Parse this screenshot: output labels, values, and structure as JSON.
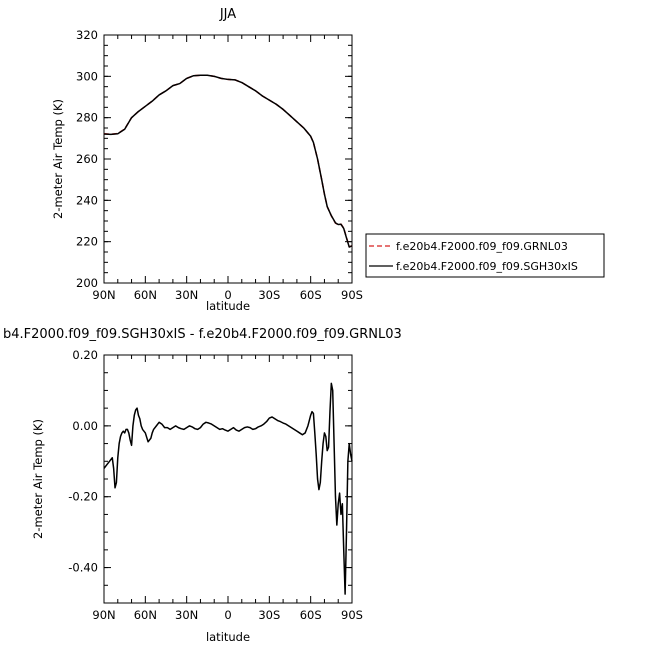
{
  "chart_data": [
    {
      "type": "line",
      "title": "JJA",
      "xlabel": "latitude",
      "ylabel": "2-meter Air Temp (K)",
      "xlim": [
        90,
        -90
      ],
      "ylim": [
        200,
        320
      ],
      "x_tick_values": [
        90,
        60,
        30,
        0,
        -30,
        -60,
        -90
      ],
      "x_tick_labels": [
        "90N",
        "60N",
        "30N",
        "0",
        "30S",
        "60S",
        "90S"
      ],
      "y_tick_values": [
        200,
        220,
        240,
        260,
        280,
        300,
        320
      ],
      "y_tick_labels": [
        "200",
        "220",
        "240",
        "260",
        "280",
        "300",
        "320"
      ],
      "legend": {
        "placement": "right",
        "entries": [
          {
            "label": "f.e20b4.F2000.f09_f09.GRNL03",
            "color": "#d62020",
            "dash": "dashed"
          },
          {
            "label": "f.e20b4.F2000.f09_f09.SGH30xIS",
            "color": "#000000",
            "dash": "solid"
          }
        ]
      },
      "series": [
        {
          "color": "#d62020",
          "dash": "dashed",
          "x": [
            90,
            85,
            80,
            75,
            70,
            65,
            60,
            55,
            50,
            45,
            40,
            35,
            30,
            25,
            20,
            15,
            10,
            5,
            0,
            -5,
            -10,
            -15,
            -20,
            -25,
            -30,
            -35,
            -40,
            -45,
            -50,
            -55,
            -60,
            -62,
            -65,
            -68,
            -70,
            -72,
            -75,
            -78,
            -80,
            -82,
            -84,
            -86,
            -88,
            -90
          ],
          "y": [
            272.2,
            272.0,
            272.3,
            274.5,
            280,
            283,
            285.5,
            288,
            291,
            293,
            295.5,
            296.5,
            299,
            300.3,
            300.5,
            300.5,
            300,
            299,
            298.5,
            298.3,
            297,
            295,
            293,
            290.5,
            288.5,
            286.5,
            284,
            281,
            278,
            275,
            271,
            268,
            260,
            250,
            243,
            237,
            232.5,
            229,
            228.2,
            228.5,
            226.5,
            222,
            217.5,
            218
          ]
        },
        {
          "color": "#000000",
          "dash": "solid",
          "x": [
            90,
            85,
            80,
            75,
            70,
            65,
            60,
            55,
            50,
            45,
            40,
            35,
            30,
            25,
            20,
            15,
            10,
            5,
            0,
            -5,
            -10,
            -15,
            -20,
            -25,
            -30,
            -35,
            -40,
            -45,
            -50,
            -55,
            -60,
            -62,
            -65,
            -68,
            -70,
            -72,
            -75,
            -78,
            -80,
            -82,
            -84,
            -86,
            -88,
            -90
          ],
          "y": [
            272.1,
            271.9,
            272.2,
            274.4,
            280,
            283,
            285.5,
            288,
            291,
            293,
            295.5,
            296.5,
            299,
            300.3,
            300.5,
            300.5,
            300,
            299,
            298.5,
            298.3,
            297,
            295,
            293,
            290.5,
            288.5,
            286.5,
            284,
            281,
            278,
            275,
            271,
            268,
            260,
            250,
            243,
            237,
            232.6,
            229.1,
            228.3,
            228.4,
            226.4,
            221.8,
            217.4,
            218
          ]
        }
      ]
    },
    {
      "type": "line",
      "title": "b4.F2000.f09_f09.SGH30xIS - f.e20b4.F2000.f09_f09.GRNL03",
      "xlabel": "latitude",
      "ylabel": "2-meter Air Temp (K)",
      "xlim": [
        90,
        -90
      ],
      "ylim": [
        -0.5,
        0.2
      ],
      "x_tick_values": [
        90,
        60,
        30,
        0,
        -30,
        -60,
        -90
      ],
      "x_tick_labels": [
        "90N",
        "60N",
        "30N",
        "0",
        "30S",
        "60S",
        "90S"
      ],
      "y_tick_values": [
        0.2,
        0.0,
        -0.2,
        -0.4
      ],
      "y_tick_labels": [
        "0.20",
        "0.00",
        "-0.20",
        "-0.40"
      ],
      "series": [
        {
          "color": "#000000",
          "dash": "solid",
          "x": [
            90,
            88,
            86,
            84,
            83,
            82,
            81,
            80,
            79,
            78,
            77,
            76,
            75,
            74,
            73,
            72,
            71,
            70,
            69,
            68,
            67,
            66,
            65,
            64,
            63,
            62,
            60,
            58,
            56,
            55,
            54,
            52,
            50,
            48,
            46,
            44,
            42,
            40,
            38,
            36,
            34,
            32,
            30,
            28,
            26,
            24,
            22,
            20,
            18,
            16,
            14,
            12,
            10,
            8,
            6,
            4,
            2,
            0,
            -2,
            -4,
            -6,
            -8,
            -10,
            -12,
            -14,
            -16,
            -18,
            -20,
            -22,
            -24,
            -26,
            -28,
            -30,
            -32,
            -34,
            -36,
            -38,
            -40,
            -42,
            -44,
            -46,
            -48,
            -50,
            -52,
            -54,
            -56,
            -58,
            -59,
            -60,
            -61,
            -62,
            -63,
            -64,
            -65,
            -66,
            -67,
            -68,
            -69,
            -70,
            -71,
            -72,
            -73,
            -74,
            -75,
            -76,
            -77,
            -78,
            -79,
            -80,
            -81,
            -82,
            -83,
            -84,
            -85,
            -86,
            -87,
            -88,
            -89,
            -90
          ],
          "y": [
            -0.12,
            -0.11,
            -0.1,
            -0.09,
            -0.12,
            -0.175,
            -0.16,
            -0.09,
            -0.05,
            -0.03,
            -0.02,
            -0.015,
            -0.02,
            -0.01,
            -0.01,
            -0.02,
            -0.04,
            -0.055,
            0.0,
            0.03,
            0.045,
            0.05,
            0.03,
            0.02,
            0.0,
            -0.01,
            -0.02,
            -0.045,
            -0.035,
            -0.02,
            -0.01,
            0.0,
            0.01,
            0.005,
            -0.005,
            -0.005,
            -0.01,
            -0.005,
            0.0,
            -0.005,
            -0.008,
            -0.01,
            -0.005,
            0.0,
            -0.003,
            -0.008,
            -0.01,
            -0.005,
            0.005,
            0.01,
            0.008,
            0.005,
            0.0,
            -0.005,
            -0.01,
            -0.008,
            -0.012,
            -0.015,
            -0.01,
            -0.005,
            -0.012,
            -0.015,
            -0.01,
            -0.005,
            -0.003,
            -0.005,
            -0.01,
            -0.008,
            -0.003,
            0.0,
            0.005,
            0.012,
            0.022,
            0.025,
            0.02,
            0.015,
            0.012,
            0.008,
            0.005,
            0.0,
            -0.005,
            -0.01,
            -0.015,
            -0.02,
            -0.025,
            -0.02,
            0.0,
            0.015,
            0.03,
            0.04,
            0.035,
            -0.02,
            -0.08,
            -0.15,
            -0.18,
            -0.16,
            -0.1,
            -0.05,
            -0.02,
            -0.03,
            -0.07,
            -0.06,
            0.04,
            0.12,
            0.1,
            -0.05,
            -0.2,
            -0.28,
            -0.22,
            -0.19,
            -0.25,
            -0.22,
            -0.35,
            -0.475,
            -0.3,
            -0.1,
            -0.05,
            -0.08,
            -0.1
          ]
        }
      ]
    }
  ]
}
